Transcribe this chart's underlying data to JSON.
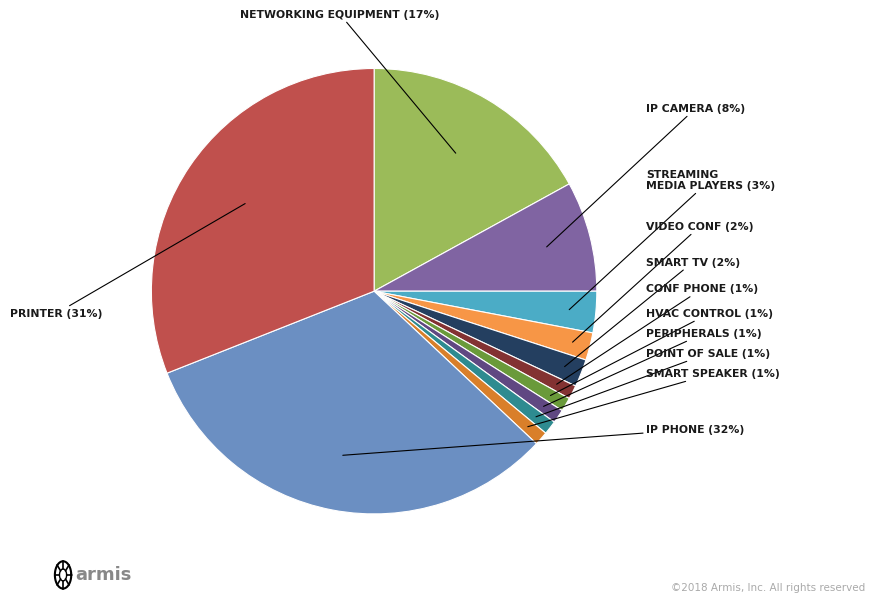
{
  "slices": [
    {
      "label": "NETWORKING EQUIPMENT (17%)",
      "value": 17,
      "color": "#9bbb59"
    },
    {
      "label": "IP CAMERA (8%)",
      "value": 8,
      "color": "#8064a2"
    },
    {
      "label": "STREAMING\nMEDIA PLAYERS (3%)",
      "value": 3,
      "color": "#4bacc6"
    },
    {
      "label": "VIDEO CONF (2%)",
      "value": 2,
      "color": "#f79646"
    },
    {
      "label": "SMART TV (2%)",
      "value": 2,
      "color": "#243f60"
    },
    {
      "label": "CONF PHONE (1%)",
      "value": 1,
      "color": "#833232"
    },
    {
      "label": "HVAC CONTROL (1%)",
      "value": 1,
      "color": "#6a9a3a"
    },
    {
      "label": "PERIPHERALS (1%)",
      "value": 1,
      "color": "#604882"
    },
    {
      "label": "POINT OF SALE (1%)",
      "value": 1,
      "color": "#2e8b90"
    },
    {
      "label": "SMART SPEAKER (1%)",
      "value": 1,
      "color": "#d97f2a"
    },
    {
      "label": "IP PHONE (32%)",
      "value": 32,
      "color": "#6b8fc2"
    },
    {
      "label": "PRINTER (31%)",
      "value": 31,
      "color": "#c0504d"
    }
  ],
  "bg_color": "#ffffff",
  "text_color": "#1a1a1a",
  "copyright_text": "©2018 Armis, Inc. All rights reserved"
}
